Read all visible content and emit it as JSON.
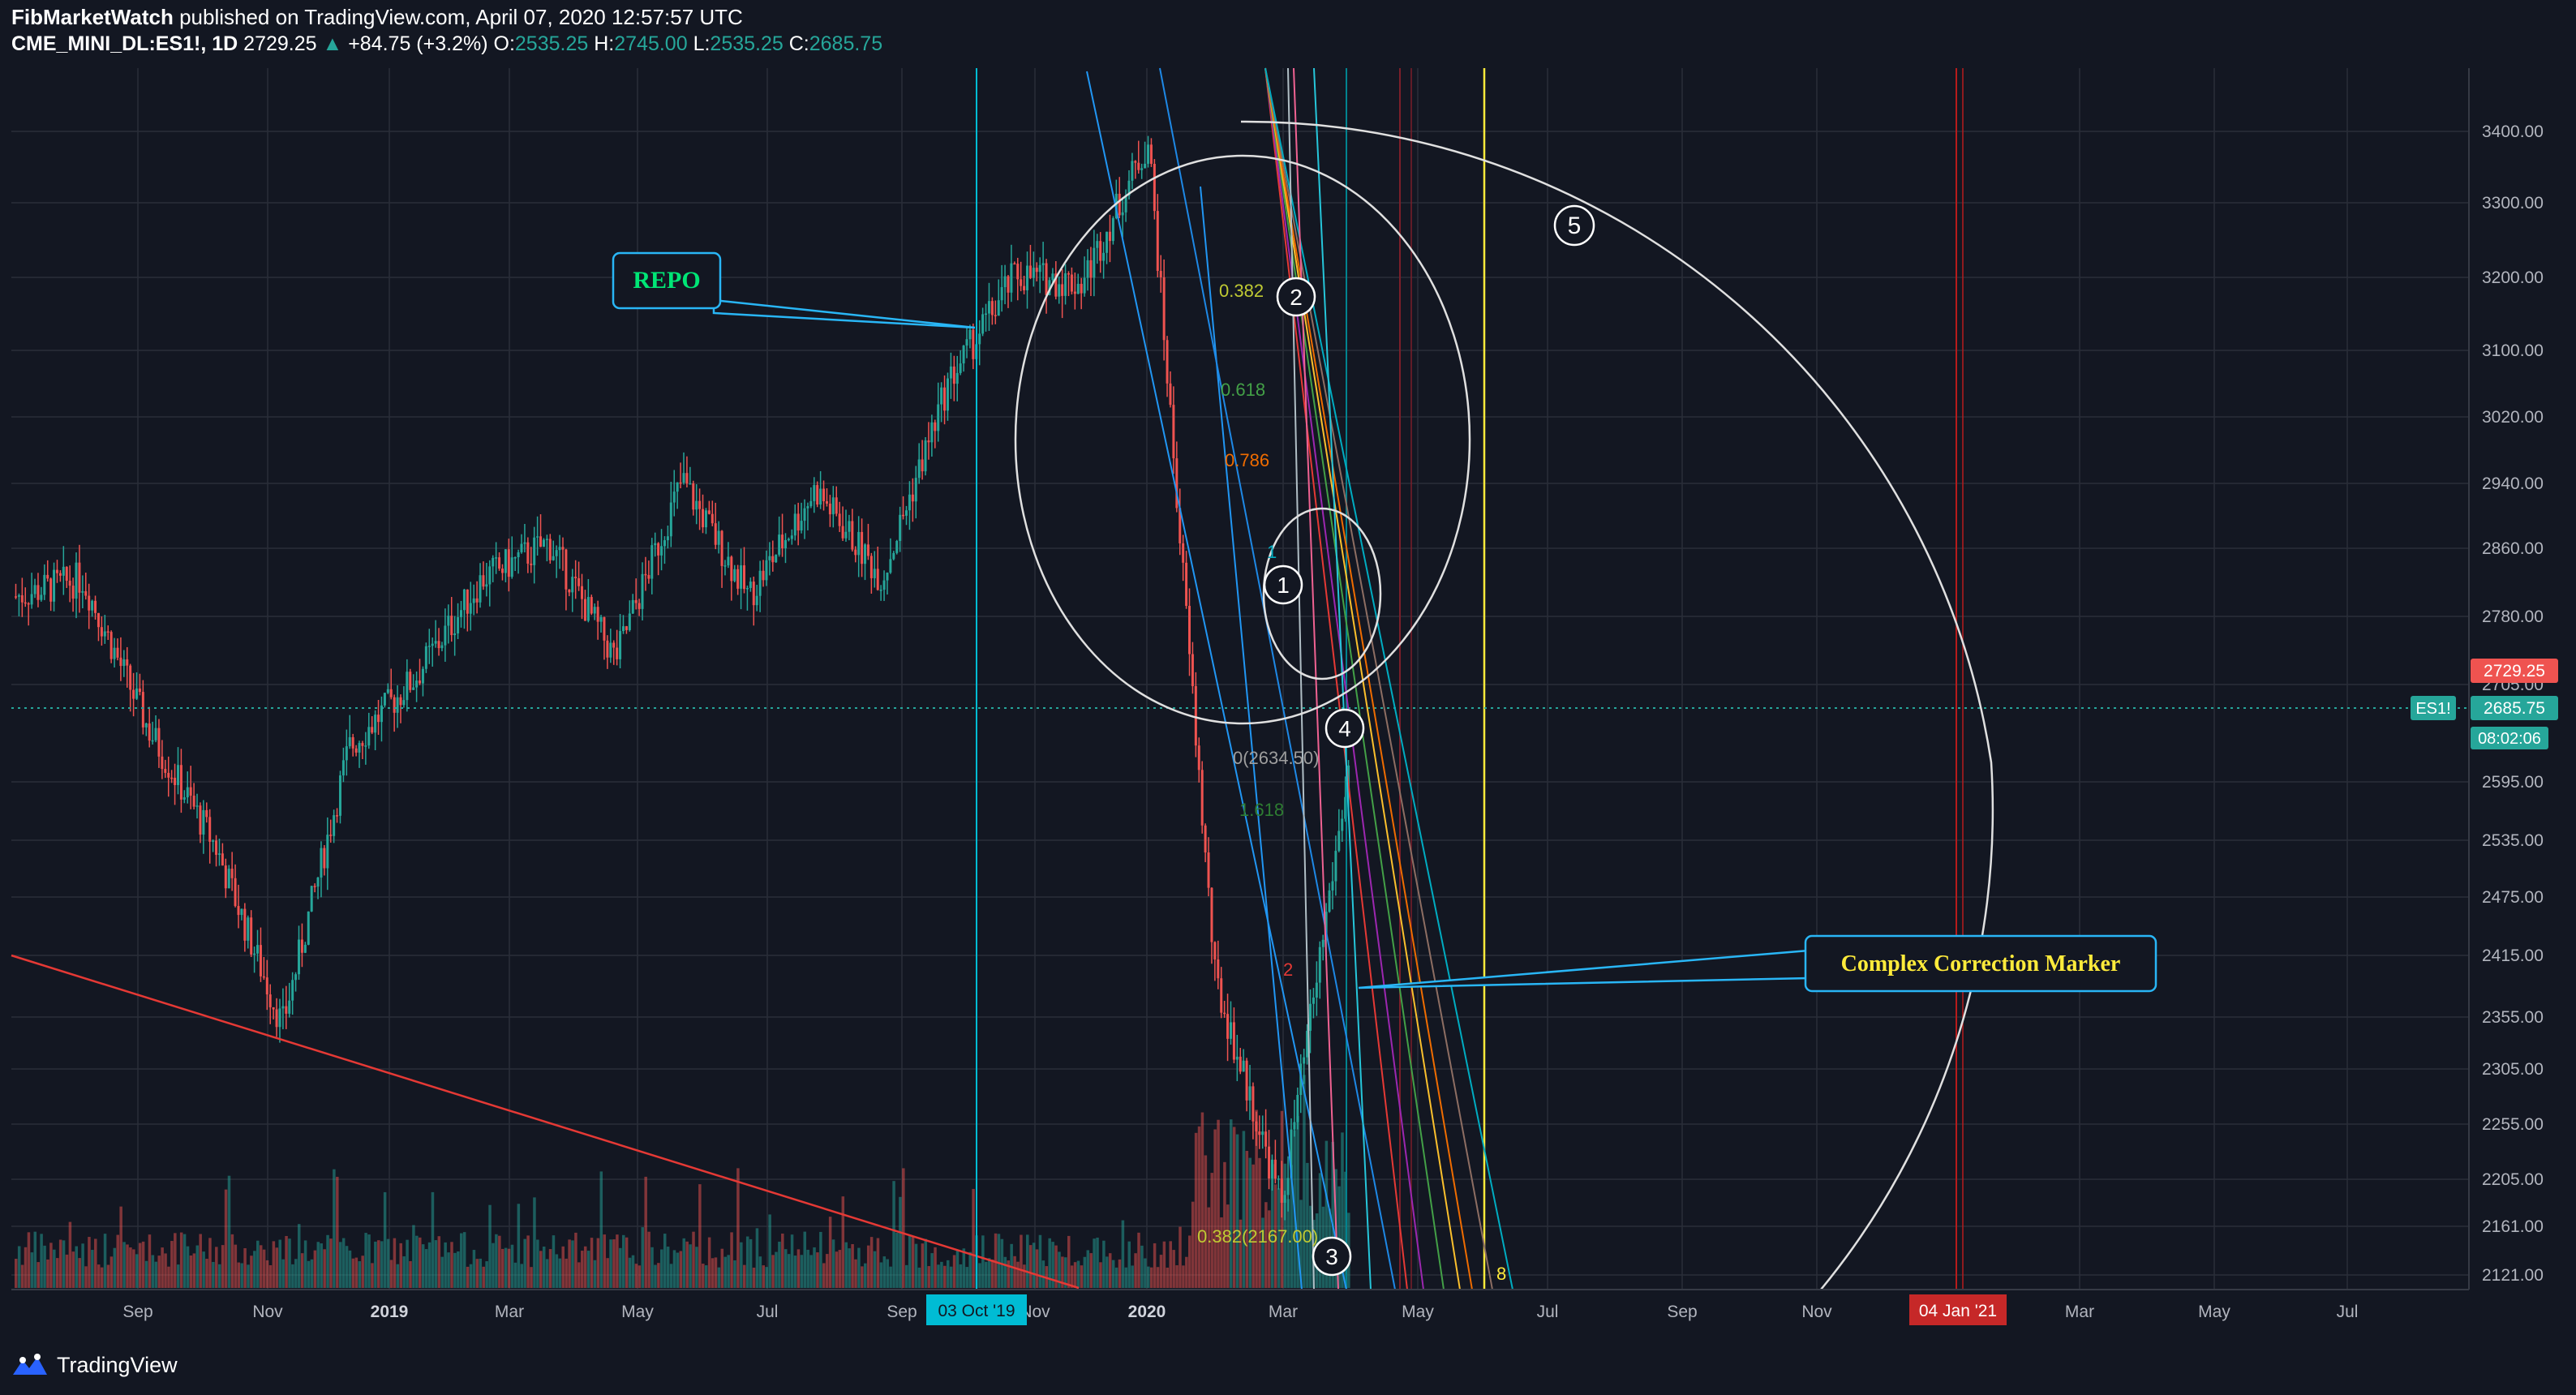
{
  "header": {
    "publisher": "FibMarketWatch",
    "published_text": "published on TradingView.com, April 07, 2020 12:57:57 UTC",
    "symbol": "CME_MINI_DL:ES1!, 1D",
    "last": "2729.25",
    "change": "+84.75 (+3.2%)",
    "open_label": "O:",
    "open": "2535.25",
    "high_label": "H:",
    "high": "2745.00",
    "low_label": "L:",
    "low": "2535.25",
    "close_label": "C:",
    "close": "2685.75"
  },
  "price_axis": {
    "ticks": [
      "3400.00",
      "3300.00",
      "3200.00",
      "3100.00",
      "3020.00",
      "2940.00",
      "2860.00",
      "2780.00",
      "2705.00",
      "2595.00",
      "2535.00",
      "2475.00",
      "2415.00",
      "2355.00",
      "2305.00",
      "2255.00",
      "2205.00",
      "2161.00",
      "2121.00"
    ],
    "last_price_badge": "2729.25",
    "symbol_badge": "ES1!",
    "close_badge": "2685.75",
    "countdown_badge": "08:02:06"
  },
  "time_axis": {
    "labels": [
      "Sep",
      "Nov",
      "2019",
      "Mar",
      "May",
      "Jul",
      "Sep",
      "Nov",
      "2020",
      "Mar",
      "May",
      "Jul",
      "Sep",
      "Nov",
      "Mar",
      "May",
      "Jul"
    ],
    "badge_repo_date": "03 Oct '19",
    "badge_future_date": "04 Jan '21"
  },
  "annotations": {
    "repo_label": "REPO",
    "complex_label": "Complex Correction Marker",
    "wave_1": "1",
    "wave_2": "2",
    "wave_3": "3",
    "wave_4": "4",
    "wave_5": "5",
    "fib_0382": "0.382",
    "fib_0618": "0.618",
    "fib_0786": "0.786",
    "fib_1": "1",
    "fib_0_price": "0(2634.50)",
    "fib_1618": "1.618",
    "fib_2": "2",
    "fib_0382_price": "0.382(2167.00)",
    "yellow_count": "8"
  },
  "colors": {
    "background": "#131722",
    "up_candle": "#26a69a",
    "down_candle": "#ef5350",
    "cyan_line": "#00bcd4",
    "yellow_line": "#ffeb3b",
    "red_line": "#e53935",
    "repo_text": "#00e676",
    "complex_text": "#ffeb3b",
    "callout_border": "#29b6f6"
  },
  "chart_data": {
    "type": "candlestick",
    "symbol": "ES1!",
    "interval": "1D",
    "ylim": [
      2121,
      3420
    ],
    "series": [
      {
        "name": "ES1!",
        "points": [
          [
            "Sep",
            2880
          ],
          [
            "Oct",
            2900
          ],
          [
            "Nov",
            2730
          ],
          [
            "Dec",
            2600
          ],
          [
            "2019",
            2400
          ],
          [
            "Feb",
            2710
          ],
          [
            "Mar",
            2790
          ],
          [
            "Apr",
            2900
          ],
          [
            "May",
            2940
          ],
          [
            "Jun",
            2810
          ],
          [
            "Jul",
            3010
          ],
          [
            "Aug",
            2880
          ],
          [
            "Sep",
            3000
          ],
          [
            "Oct",
            2900
          ],
          [
            "Nov",
            3120
          ],
          [
            "Dec",
            3240
          ],
          [
            "2020",
            3230
          ],
          [
            "Feb",
            3390
          ],
          [
            "Mar",
            2450
          ],
          [
            "Mar",
            2200
          ],
          [
            "Apr",
            2685.75
          ]
        ]
      }
    ],
    "current_price": 2729.25,
    "close": 2685.75
  },
  "footer": {
    "brand": "TradingView"
  }
}
